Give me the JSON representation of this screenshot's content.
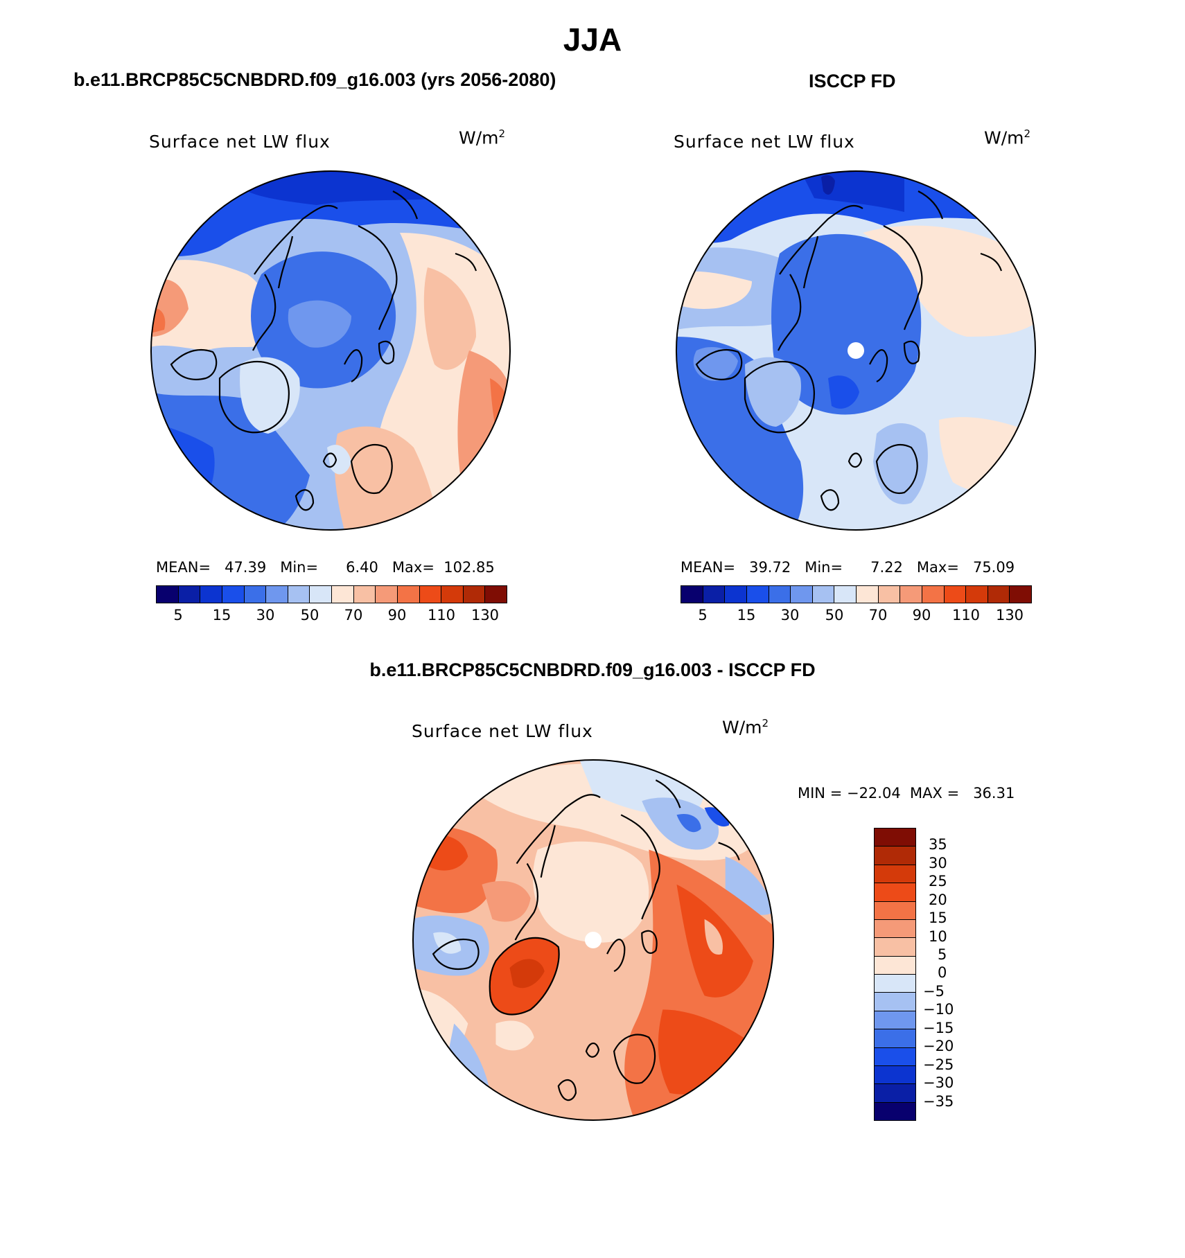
{
  "main_title": "JJA",
  "panels": [
    {
      "title": "b.e11.BRCP85C5CNBDRD.f09_g16.003 (yrs 2056-2080)",
      "field": "Surface net LW flux",
      "units": "W/m",
      "units_sup": "2",
      "stats": "MEAN=   47.39   Min=      6.40   Max=  102.85",
      "colorbar_labels": [
        "5",
        "15",
        "30",
        "50",
        "70",
        "90",
        "110",
        "130"
      ]
    },
    {
      "title": "ISCCP FD",
      "field": "Surface net LW flux",
      "units": "W/m",
      "units_sup": "2",
      "stats": "MEAN=   39.72   Min=      7.22   Max=   75.09",
      "colorbar_labels": [
        "5",
        "15",
        "30",
        "50",
        "70",
        "90",
        "110",
        "130"
      ]
    },
    {
      "title": "b.e11.BRCP85C5CNBDRD.f09_g16.003 - ISCCP FD",
      "field": "Surface net LW flux",
      "units": "W/m",
      "units_sup": "2",
      "stats": "MIN = −22.04  MAX =   36.31",
      "colorbar_labels": [
        "35",
        "30",
        "25",
        "20",
        "15",
        "10",
        "5",
        "0",
        "−5",
        "−10",
        "−15",
        "−20",
        "−25",
        "−30",
        "−35"
      ]
    }
  ],
  "colors": {
    "abs_scale": [
      "#08006e",
      "#0a1fa6",
      "#0c34d0",
      "#1a4fea",
      "#3b6fe8",
      "#6f97ee",
      "#a6c1f2",
      "#d8e6f8",
      "#fde6d6",
      "#f8c0a4",
      "#f59a78",
      "#f37346",
      "#ed4b18",
      "#d43a0a",
      "#b02a06",
      "#7f0d04"
    ],
    "diff_scale": [
      "#7f0d04",
      "#b02a06",
      "#d43a0a",
      "#ed4b18",
      "#f37346",
      "#f59a78",
      "#f8c0a4",
      "#fde6d6",
      "#d8e6f8",
      "#a6c1f2",
      "#6f97ee",
      "#3b6fe8",
      "#1a4fea",
      "#0c34d0",
      "#0a1fa6",
      "#08006e"
    ]
  }
}
